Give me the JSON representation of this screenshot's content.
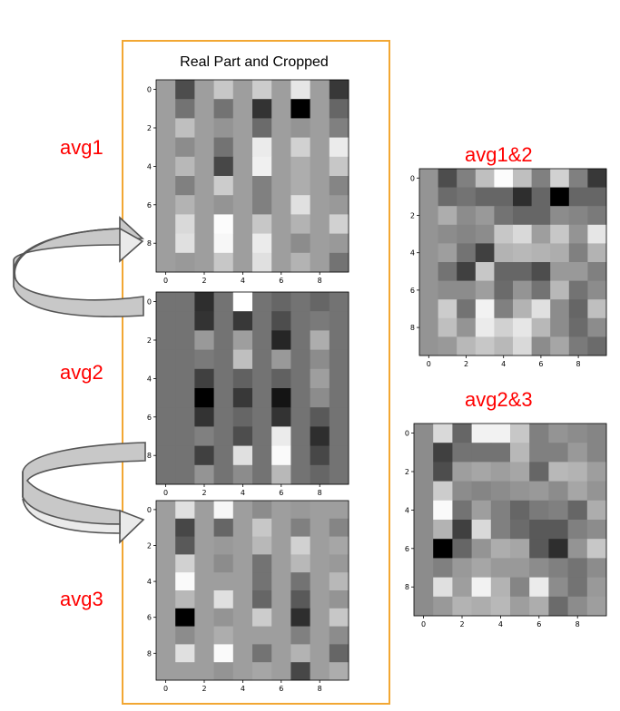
{
  "panel_title": "Real Part and Cropped",
  "labels": {
    "avg1": "avg1",
    "avg2": "avg2",
    "avg3": "avg3",
    "avg12": "avg1&2",
    "avg23": "avg2&3"
  },
  "colors": {
    "frame": "#F2A733",
    "label": "#FF0000",
    "arrow_fill": "#C8C8C8",
    "arrow_stroke": "#555555"
  },
  "chart_data": [
    {
      "id": "avg1",
      "type": "heatmap",
      "colormap": "gray",
      "xticks": [
        0,
        2,
        4,
        6,
        8
      ],
      "yticks": [
        0,
        2,
        4,
        6,
        8
      ],
      "values": [
        [
          0.62,
          0.3,
          0.62,
          0.78,
          0.62,
          0.8,
          0.62,
          0.9,
          0.62,
          0.22
        ],
        [
          0.62,
          0.45,
          0.62,
          0.45,
          0.62,
          0.2,
          0.62,
          0.0,
          0.62,
          0.4
        ],
        [
          0.62,
          0.75,
          0.62,
          0.58,
          0.62,
          0.42,
          0.62,
          0.58,
          0.62,
          0.5
        ],
        [
          0.62,
          0.55,
          0.62,
          0.45,
          0.62,
          0.92,
          0.62,
          0.82,
          0.62,
          0.92
        ],
        [
          0.62,
          0.72,
          0.62,
          0.28,
          0.62,
          0.94,
          0.62,
          0.68,
          0.62,
          0.78
        ],
        [
          0.62,
          0.5,
          0.62,
          0.8,
          0.62,
          0.5,
          0.62,
          0.68,
          0.62,
          0.52
        ],
        [
          0.62,
          0.7,
          0.62,
          0.58,
          0.62,
          0.5,
          0.62,
          0.88,
          0.62,
          0.6
        ],
        [
          0.62,
          0.85,
          0.62,
          0.99,
          0.62,
          0.78,
          0.62,
          0.7,
          0.62,
          0.82
        ],
        [
          0.62,
          0.88,
          0.62,
          0.97,
          0.62,
          0.92,
          0.62,
          0.55,
          0.62,
          0.6
        ],
        [
          0.62,
          0.6,
          0.62,
          0.78,
          0.62,
          0.88,
          0.62,
          0.7,
          0.62,
          0.45
        ]
      ]
    },
    {
      "id": "avg2",
      "type": "heatmap",
      "colormap": "gray",
      "xticks": [
        0,
        2,
        4,
        6,
        8
      ],
      "yticks": [
        0,
        2,
        4,
        6,
        8
      ],
      "values": [
        [
          0.45,
          0.45,
          0.18,
          0.45,
          1.0,
          0.45,
          0.4,
          0.45,
          0.4,
          0.45
        ],
        [
          0.45,
          0.45,
          0.2,
          0.45,
          0.22,
          0.45,
          0.3,
          0.45,
          0.48,
          0.45
        ],
        [
          0.45,
          0.45,
          0.6,
          0.45,
          0.62,
          0.45,
          0.15,
          0.45,
          0.68,
          0.45
        ],
        [
          0.45,
          0.45,
          0.48,
          0.45,
          0.75,
          0.45,
          0.6,
          0.45,
          0.55,
          0.45
        ],
        [
          0.45,
          0.45,
          0.25,
          0.45,
          0.38,
          0.45,
          0.38,
          0.45,
          0.62,
          0.45
        ],
        [
          0.45,
          0.45,
          0.0,
          0.45,
          0.22,
          0.45,
          0.08,
          0.45,
          0.55,
          0.45
        ],
        [
          0.45,
          0.45,
          0.2,
          0.45,
          0.4,
          0.45,
          0.2,
          0.45,
          0.35,
          0.45
        ],
        [
          0.45,
          0.45,
          0.5,
          0.45,
          0.3,
          0.45,
          0.92,
          0.45,
          0.18,
          0.45
        ],
        [
          0.45,
          0.45,
          0.25,
          0.45,
          0.88,
          0.45,
          0.98,
          0.45,
          0.28,
          0.45
        ],
        [
          0.45,
          0.45,
          0.58,
          0.45,
          0.55,
          0.45,
          0.72,
          0.45,
          0.4,
          0.45
        ]
      ]
    },
    {
      "id": "avg3",
      "type": "heatmap",
      "colormap": "gray",
      "xticks": [
        0,
        2,
        4,
        6,
        8
      ],
      "yticks": [
        0,
        2,
        4,
        6,
        8
      ],
      "values": [
        [
          0.62,
          0.88,
          0.62,
          0.97,
          0.62,
          0.55,
          0.62,
          0.6,
          0.62,
          0.62
        ],
        [
          0.62,
          0.28,
          0.62,
          0.4,
          0.62,
          0.78,
          0.62,
          0.5,
          0.62,
          0.52
        ],
        [
          0.62,
          0.35,
          0.62,
          0.6,
          0.62,
          0.72,
          0.62,
          0.82,
          0.62,
          0.65
        ],
        [
          0.62,
          0.82,
          0.62,
          0.55,
          0.62,
          0.45,
          0.62,
          0.72,
          0.62,
          0.6
        ],
        [
          0.62,
          0.98,
          0.62,
          0.62,
          0.62,
          0.45,
          0.62,
          0.45,
          0.62,
          0.72
        ],
        [
          0.62,
          0.72,
          0.62,
          0.88,
          0.62,
          0.4,
          0.62,
          0.35,
          0.62,
          0.58
        ],
        [
          0.62,
          0.0,
          0.62,
          0.58,
          0.62,
          0.8,
          0.62,
          0.18,
          0.62,
          0.78
        ],
        [
          0.62,
          0.55,
          0.62,
          0.68,
          0.62,
          0.62,
          0.62,
          0.5,
          0.62,
          0.55
        ],
        [
          0.62,
          0.88,
          0.62,
          0.98,
          0.62,
          0.45,
          0.62,
          0.7,
          0.62,
          0.4
        ],
        [
          0.62,
          0.62,
          0.62,
          0.58,
          0.62,
          0.65,
          0.62,
          0.28,
          0.62,
          0.68
        ]
      ]
    },
    {
      "id": "avg1&2",
      "type": "heatmap",
      "colormap": "gray",
      "xticks": [
        0,
        2,
        4,
        6,
        8
      ],
      "yticks": [
        0,
        2,
        4,
        6,
        8
      ],
      "values": [
        [
          0.58,
          0.3,
          0.5,
          0.75,
          0.99,
          0.75,
          0.5,
          0.82,
          0.5,
          0.22
        ],
        [
          0.58,
          0.42,
          0.45,
          0.4,
          0.4,
          0.18,
          0.4,
          0.0,
          0.4,
          0.4
        ],
        [
          0.58,
          0.68,
          0.55,
          0.6,
          0.45,
          0.4,
          0.4,
          0.55,
          0.52,
          0.48
        ],
        [
          0.58,
          0.55,
          0.52,
          0.55,
          0.78,
          0.85,
          0.62,
          0.78,
          0.58,
          0.9
        ],
        [
          0.58,
          0.62,
          0.45,
          0.25,
          0.7,
          0.72,
          0.7,
          0.68,
          0.5,
          0.7
        ],
        [
          0.58,
          0.45,
          0.25,
          0.78,
          0.4,
          0.4,
          0.3,
          0.6,
          0.6,
          0.5
        ],
        [
          0.58,
          0.55,
          0.55,
          0.62,
          0.42,
          0.58,
          0.45,
          0.72,
          0.45,
          0.55
        ],
        [
          0.58,
          0.8,
          0.45,
          0.95,
          0.5,
          0.7,
          0.88,
          0.55,
          0.4,
          0.75
        ],
        [
          0.58,
          0.75,
          0.58,
          0.92,
          0.82,
          0.9,
          0.72,
          0.55,
          0.42,
          0.55
        ],
        [
          0.58,
          0.6,
          0.72,
          0.78,
          0.72,
          0.85,
          0.55,
          0.65,
          0.48,
          0.42
        ]
      ]
    },
    {
      "id": "avg2&3",
      "type": "heatmap",
      "colormap": "gray",
      "xticks": [
        0,
        2,
        4,
        6,
        8
      ],
      "yticks": [
        0,
        2,
        4,
        6,
        8
      ],
      "values": [
        [
          0.55,
          0.85,
          0.4,
          0.95,
          0.95,
          0.78,
          0.5,
          0.58,
          0.55,
          0.52
        ],
        [
          0.55,
          0.25,
          0.45,
          0.45,
          0.45,
          0.72,
          0.5,
          0.5,
          0.6,
          0.52
        ],
        [
          0.55,
          0.3,
          0.62,
          0.65,
          0.62,
          0.65,
          0.4,
          0.72,
          0.7,
          0.62
        ],
        [
          0.55,
          0.8,
          0.55,
          0.52,
          0.55,
          0.58,
          0.6,
          0.55,
          0.65,
          0.58
        ],
        [
          0.55,
          0.98,
          0.45,
          0.62,
          0.5,
          0.4,
          0.48,
          0.5,
          0.4,
          0.68
        ],
        [
          0.55,
          0.7,
          0.25,
          0.85,
          0.5,
          0.42,
          0.35,
          0.35,
          0.5,
          0.55
        ],
        [
          0.55,
          0.0,
          0.4,
          0.58,
          0.68,
          0.65,
          0.35,
          0.18,
          0.58,
          0.78
        ],
        [
          0.55,
          0.5,
          0.6,
          0.65,
          0.6,
          0.6,
          0.55,
          0.5,
          0.45,
          0.55
        ],
        [
          0.55,
          0.88,
          0.62,
          0.95,
          0.7,
          0.52,
          0.92,
          0.55,
          0.45,
          0.6
        ],
        [
          0.55,
          0.6,
          0.7,
          0.68,
          0.72,
          0.62,
          0.68,
          0.42,
          0.55,
          0.62
        ]
      ]
    }
  ]
}
